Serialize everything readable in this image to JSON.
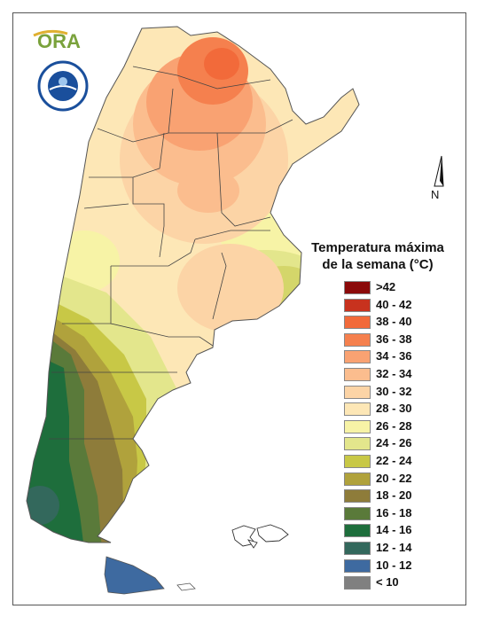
{
  "map": {
    "title_line1": "Temperatura máxima",
    "title_line2": "de la semana (°C)",
    "north_label": "N",
    "logo_text": "ORA",
    "legend": [
      {
        "label": ">42",
        "color": "#8b0a0a"
      },
      {
        "label": "40 - 42",
        "color": "#c8321e"
      },
      {
        "label": "38 - 40",
        "color": "#f26a3a"
      },
      {
        "label": "36 - 38",
        "color": "#f5804e"
      },
      {
        "label": "34 - 36",
        "color": "#f9a272"
      },
      {
        "label": "32 - 34",
        "color": "#fbbd8e"
      },
      {
        "label": "30 - 32",
        "color": "#fcd4a6"
      },
      {
        "label": "28 - 30",
        "color": "#fde7b6"
      },
      {
        "label": "26 - 28",
        "color": "#f7f3a6"
      },
      {
        "label": "24 - 26",
        "color": "#e3e68c"
      },
      {
        "label": "22 - 24",
        "color": "#c8c846"
      },
      {
        "label": "20 - 22",
        "color": "#b0a23c"
      },
      {
        "label": "18 - 20",
        "color": "#8e7c3a"
      },
      {
        "label": "16 - 18",
        "color": "#5a7a3a"
      },
      {
        "label": "14 - 16",
        "color": "#1e6e3c"
      },
      {
        "label": "12 - 14",
        "color": "#33685c"
      },
      {
        "label": "10 - 12",
        "color": "#3e6aa0"
      },
      {
        "label": "< 10",
        "color": "#808080"
      }
    ]
  }
}
